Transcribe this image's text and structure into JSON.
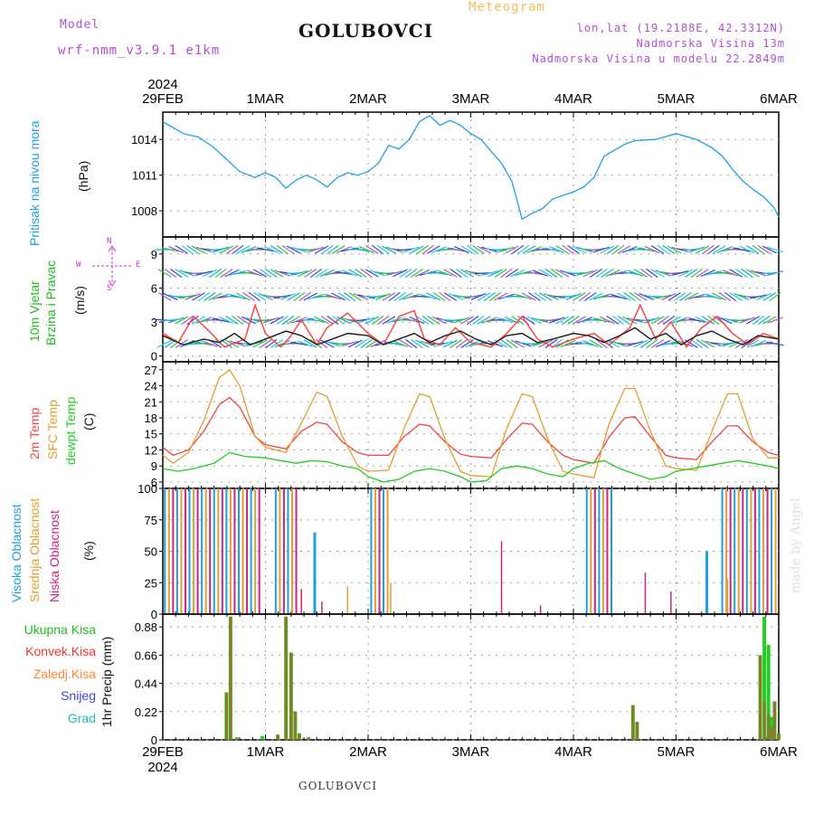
{
  "header": {
    "model_label": "Model",
    "model_name": "wrf-nmm_v3.9.1 e1km",
    "title": "GOLUBOVCI",
    "meteogram_label": "Meteogram",
    "lonlat": "lon,lat (19.2188E, 42.3312N)",
    "altitude": "Nadmorska Visina 13m",
    "model_altitude": "Nadmorska Visina u modelu 22.2849m"
  },
  "footer": {
    "station": "GOLUBOVCI"
  },
  "watermark": "made by Angel",
  "colors": {
    "pressure": "#1e9fe0",
    "wind_label": "#22bb22",
    "wind_speed": "#ff4444",
    "temp2m": "#ee4444",
    "sfc_temp": "#e0a030",
    "dewpt": "#22cc22",
    "cloud_high": "#1e9fe0",
    "cloud_mid": "#e0a030",
    "cloud_low": "#cc2288",
    "rain_total": "#22cc22",
    "rain_conv": "#ee3333",
    "rain_frozen": "#ff8833",
    "snow": "#4444dd",
    "hail": "#22bbbb",
    "purple": "#b050d0",
    "orange": "#f0c060"
  },
  "chart_data": {
    "time_axis": {
      "year_label": "2024",
      "labels": [
        "29FEB",
        "1MAR",
        "2MAR",
        "3MAR",
        "4MAR",
        "5MAR",
        "6MAR"
      ],
      "start_day": 29,
      "end_day": 35
    },
    "panels": [
      {
        "id": "pressure",
        "type": "line",
        "labels": [
          "Pritisak na nivou mora",
          "(hPa)"
        ],
        "yticks": [
          1008,
          1011,
          1014
        ],
        "ylim": [
          1005.8,
          1016.3
        ],
        "grid": true,
        "series": [
          {
            "x": [
              29.0,
              29.1,
              29.2,
              29.35,
              29.5,
              29.6,
              29.75,
              29.9,
              30.0,
              30.1,
              30.2,
              30.3,
              30.4,
              30.5,
              30.6,
              30.7,
              30.8,
              30.9,
              31.0,
              31.1,
              31.2,
              31.3,
              31.4,
              31.5,
              31.6,
              31.7,
              31.8,
              31.9,
              32.0,
              32.1,
              32.2,
              32.3,
              32.4,
              32.5,
              32.6,
              32.7,
              32.8,
              33.0,
              33.1,
              33.2,
              33.3,
              33.5,
              33.6,
              33.8,
              34.0,
              34.2,
              34.35,
              34.45,
              34.55,
              34.65,
              34.75,
              34.85,
              34.95,
              35.0
            ],
            "y": [
              1015.5,
              1015.0,
              1014.5,
              1014.2,
              1013.3,
              1012.5,
              1011.3,
              1010.8,
              1011.2,
              1010.8,
              1009.9,
              1010.6,
              1011.0,
              1010.6,
              1010.0,
              1010.8,
              1011.2,
              1011.0,
              1011.3,
              1012.0,
              1013.5,
              1013.2,
              1014.0,
              1015.5,
              1016.0,
              1015.2,
              1015.6,
              1015.2,
              1014.5,
              1014.0,
              1013.0,
              1012.0,
              1010.5,
              1007.3,
              1007.8,
              1008.2,
              1009.0,
              1009.6,
              1010.0,
              1010.8,
              1012.6,
              1013.6,
              1013.9,
              1014.0,
              1014.5,
              1014.0,
              1013.3,
              1012.6,
              1011.5,
              1010.5,
              1009.8,
              1009.2,
              1008.3,
              1007.5
            ]
          }
        ]
      },
      {
        "id": "wind",
        "type": "line",
        "labels": [
          "10m Vjetar",
          "Brzina i Pravac",
          "(m/s)"
        ],
        "compass": [
          "N",
          "W",
          "E",
          "S"
        ],
        "yticks": [
          0,
          3,
          6,
          9
        ],
        "ylim": [
          -0.5,
          10.5
        ],
        "grid": true,
        "series": [
          {
            "name": "speed",
            "x": [
              29.0,
              29.15,
              29.3,
              29.45,
              29.6,
              29.8,
              29.9,
              30.0,
              30.15,
              30.25,
              30.35,
              30.5,
              30.6,
              30.8,
              31.0,
              31.15,
              31.3,
              31.45,
              31.55,
              31.7,
              31.85,
              32.0,
              32.2,
              32.35,
              32.5,
              32.65,
              32.8,
              33.0,
              33.2,
              33.35,
              33.55,
              33.65,
              33.8,
              33.95,
              34.1,
              34.25,
              34.4,
              34.55,
              34.7,
              34.85,
              35.0
            ],
            "y": [
              2.0,
              1.2,
              3.5,
              2.2,
              0.8,
              1.5,
              4.5,
              2.0,
              0.8,
              1.8,
              3.2,
              1.0,
              2.5,
              3.8,
              2.0,
              1.0,
              3.5,
              4.0,
              1.5,
              1.0,
              2.5,
              1.2,
              0.8,
              2.0,
              3.5,
              1.5,
              0.8,
              1.5,
              2.0,
              1.0,
              2.5,
              4.5,
              1.5,
              3.0,
              0.8,
              2.5,
              3.5,
              2.0,
              1.0,
              2.0,
              1.5
            ]
          },
          {
            "name": "gust",
            "x": [
              29.0,
              29.2,
              29.4,
              29.55,
              29.7,
              29.85,
              30.0,
              30.2,
              30.35,
              30.5,
              30.65,
              30.8,
              31.0,
              31.15,
              31.3,
              31.45,
              31.6,
              31.75,
              31.9,
              32.05,
              32.2,
              32.35,
              32.5,
              32.65,
              32.8,
              33.0,
              33.15,
              33.3,
              33.45,
              33.6,
              33.75,
              33.9,
              34.05,
              34.2,
              34.35,
              34.5,
              34.65,
              34.8,
              35.0
            ],
            "y": [
              1.8,
              1.0,
              1.5,
              1.2,
              2.0,
              1.0,
              1.5,
              2.2,
              1.8,
              1.0,
              1.5,
              2.0,
              1.8,
              1.0,
              1.5,
              2.0,
              1.2,
              1.8,
              2.2,
              1.5,
              1.0,
              1.8,
              2.0,
              1.2,
              1.5,
              2.0,
              1.8,
              1.2,
              1.8,
              2.5,
              1.5,
              2.0,
              1.0,
              1.8,
              2.2,
              1.5,
              1.0,
              1.8,
              1.5
            ]
          }
        ]
      },
      {
        "id": "temp",
        "type": "line",
        "labels": [
          "2m Temp",
          "SFC Temp",
          "dewpt Temp",
          "(C)"
        ],
        "yticks": [
          6,
          9,
          12,
          15,
          18,
          21,
          24,
          27
        ],
        "ylim": [
          4.8,
          28.5
        ],
        "grid": true,
        "series": [
          {
            "name": "2m Temp",
            "x": [
              29.0,
              29.1,
              29.25,
              29.4,
              29.55,
              29.65,
              29.75,
              29.9,
              30.0,
              30.2,
              30.35,
              30.5,
              30.6,
              30.75,
              30.9,
              31.0,
              31.2,
              31.35,
              31.5,
              31.6,
              31.75,
              31.9,
              32.0,
              32.2,
              32.35,
              32.5,
              32.6,
              32.75,
              32.9,
              33.0,
              33.2,
              33.35,
              33.5,
              33.6,
              33.75,
              33.9,
              34.0,
              34.2,
              34.35,
              34.5,
              34.6,
              34.75,
              34.9,
              35.0
            ],
            "y": [
              12.5,
              11.0,
              12.0,
              15.5,
              20.5,
              21.8,
              20.0,
              14.5,
              13.0,
              12.2,
              15.5,
              17.2,
              16.8,
              13.5,
              11.5,
              11.0,
              11.0,
              14.5,
              16.8,
              16.5,
              13.5,
              11.2,
              10.8,
              10.5,
              14.0,
              17.0,
              16.8,
              13.5,
              11.0,
              10.2,
              9.5,
              14.5,
              18.0,
              18.2,
              14.5,
              11.0,
              10.5,
              10.2,
              13.5,
              16.5,
              16.5,
              13.5,
              11.5,
              11.0
            ]
          },
          {
            "name": "SFC Temp",
            "x": [
              29.0,
              29.1,
              29.25,
              29.4,
              29.55,
              29.65,
              29.75,
              29.9,
              30.0,
              30.2,
              30.35,
              30.5,
              30.6,
              30.75,
              30.9,
              31.0,
              31.2,
              31.35,
              31.5,
              31.6,
              31.75,
              31.9,
              32.0,
              32.2,
              32.35,
              32.5,
              32.6,
              32.75,
              32.9,
              33.0,
              33.2,
              33.35,
              33.5,
              33.6,
              33.75,
              33.9,
              34.0,
              34.2,
              34.35,
              34.5,
              34.6,
              34.75,
              34.9,
              35.0
            ],
            "y": [
              11.0,
              9.5,
              11.5,
              17.5,
              25.5,
              27.0,
              24.0,
              14.5,
              12.5,
              11.5,
              17.0,
              22.8,
              22.0,
              14.5,
              9.0,
              8.0,
              8.2,
              16.0,
              22.5,
              22.0,
              14.0,
              8.0,
              7.2,
              7.0,
              16.0,
              22.5,
              22.0,
              14.0,
              8.0,
              7.5,
              6.8,
              17.0,
              23.5,
              23.5,
              15.5,
              9.0,
              8.5,
              8.2,
              15.5,
              22.5,
              22.5,
              14.0,
              10.5,
              10.5
            ]
          },
          {
            "name": "dewpt Temp",
            "x": [
              29.0,
              29.15,
              29.3,
              29.5,
              29.65,
              29.8,
              30.0,
              30.15,
              30.3,
              30.45,
              30.6,
              30.75,
              30.9,
              31.0,
              31.15,
              31.3,
              31.45,
              31.6,
              31.75,
              31.9,
              32.0,
              32.15,
              32.3,
              32.45,
              32.6,
              32.75,
              32.9,
              33.0,
              33.15,
              33.3,
              33.45,
              33.6,
              33.75,
              33.9,
              34.0,
              34.15,
              34.3,
              34.45,
              34.6,
              34.75,
              34.9,
              35.0
            ],
            "y": [
              8.5,
              8.0,
              8.5,
              9.5,
              11.5,
              10.8,
              10.5,
              10.0,
              9.5,
              10.0,
              9.8,
              9.0,
              8.5,
              7.0,
              6.0,
              6.5,
              8.0,
              8.5,
              8.0,
              7.0,
              6.0,
              6.2,
              8.5,
              9.0,
              8.5,
              7.5,
              7.0,
              8.5,
              9.5,
              10.0,
              8.5,
              7.5,
              6.5,
              7.0,
              8.0,
              8.5,
              9.0,
              9.5,
              10.0,
              9.5,
              9.0,
              8.5
            ]
          }
        ]
      },
      {
        "id": "cloud",
        "type": "bar",
        "labels": [
          "Visoka Oblacnost",
          "Srednja Oblacnost",
          "Niska Oblacnost",
          "(%)"
        ],
        "yticks": [
          0,
          25,
          50,
          75,
          100
        ],
        "ylim": [
          0,
          100
        ],
        "grid": true,
        "blocks": [
          {
            "x0": 29.02,
            "x1": 29.95,
            "value": 100
          },
          {
            "x0": 30.1,
            "x1": 30.3,
            "value": 100
          },
          {
            "x0": 31.03,
            "x1": 31.22,
            "value": 100
          },
          {
            "x0": 33.13,
            "x1": 33.38,
            "value": 100
          },
          {
            "x0": 34.45,
            "x1": 35.0,
            "value": 100
          }
        ],
        "spikes": [
          {
            "x": 30.48,
            "value": 65,
            "layer": "high"
          },
          {
            "x": 30.35,
            "value": 20,
            "layer": "low"
          },
          {
            "x": 30.55,
            "value": 10,
            "layer": "low"
          },
          {
            "x": 30.8,
            "value": 22,
            "layer": "mid"
          },
          {
            "x": 31.22,
            "value": 25,
            "layer": "mid"
          },
          {
            "x": 32.3,
            "value": 58,
            "layer": "low"
          },
          {
            "x": 32.68,
            "value": 7,
            "layer": "low"
          },
          {
            "x": 33.7,
            "value": 33,
            "layer": "low"
          },
          {
            "x": 33.95,
            "value": 18,
            "layer": "low"
          },
          {
            "x": 34.3,
            "value": 50,
            "layer": "high"
          },
          {
            "x": 34.5,
            "value": 28,
            "layer": "mid"
          }
        ]
      },
      {
        "id": "precip",
        "type": "bar",
        "labels": [
          "Ukupna Kisa",
          "Konvek.Kisa",
          "Zaledj.Kisa",
          "Snijeg",
          "Grad",
          "1hr Precip (mm)"
        ],
        "yticks": [
          0,
          0.22,
          0.44,
          0.66,
          0.88
        ],
        "ylim": [
          0,
          0.98
        ],
        "grid": true,
        "bars": [
          {
            "x": 29.62,
            "total": 0.37,
            "conv": 0.37
          },
          {
            "x": 29.66,
            "total": 0.96,
            "conv": 0.96
          },
          {
            "x": 29.72,
            "total": 0.02,
            "conv": 0.01
          },
          {
            "x": 29.97,
            "total": 0.03,
            "conv": 0.0
          },
          {
            "x": 30.12,
            "total": 0.04,
            "conv": 0.04
          },
          {
            "x": 30.2,
            "total": 0.96,
            "conv": 0.96
          },
          {
            "x": 30.25,
            "total": 0.68,
            "conv": 0.68
          },
          {
            "x": 30.29,
            "total": 0.22,
            "conv": 0.22
          },
          {
            "x": 30.33,
            "total": 0.05,
            "conv": 0.05
          },
          {
            "x": 30.42,
            "total": 0.02,
            "conv": 0.02
          },
          {
            "x": 33.58,
            "total": 0.27,
            "conv": 0.27
          },
          {
            "x": 33.62,
            "total": 0.14,
            "conv": 0.14
          },
          {
            "x": 34.82,
            "total": 0.66,
            "conv": 0.66
          },
          {
            "x": 34.86,
            "total": 0.96,
            "conv": 0.3
          },
          {
            "x": 34.9,
            "total": 0.74,
            "conv": 0.2
          },
          {
            "x": 34.93,
            "total": 0.18,
            "conv": 0.1
          },
          {
            "x": 34.96,
            "total": 0.3,
            "conv": 0.3
          },
          {
            "x": 35.0,
            "total": 0.05,
            "conv": 0.05
          }
        ]
      }
    ]
  }
}
